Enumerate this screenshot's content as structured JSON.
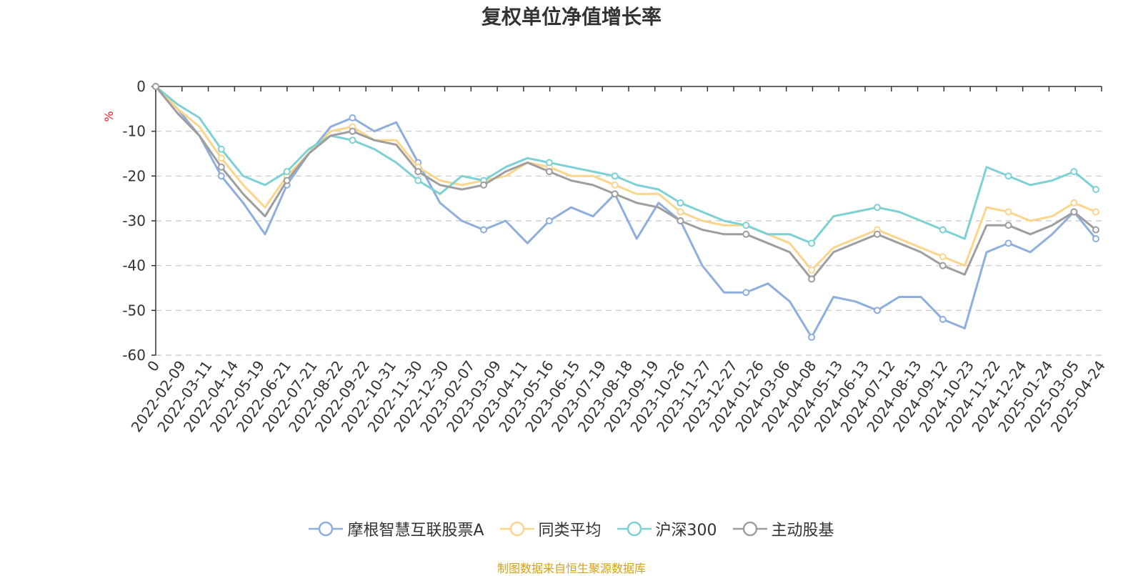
{
  "chart_data": {
    "type": "line",
    "title": "复权单位净值增长率",
    "ylabel": "%",
    "ylim": [
      -60,
      0
    ],
    "y_ticks": [
      "0",
      "-10",
      "-20",
      "-30",
      "-40",
      "-50",
      "-60"
    ],
    "x_tick_labels": [
      "0",
      "2022-02-09",
      "2022-03-11",
      "2022-04-14",
      "2022-05-19",
      "2022-06-21",
      "2022-07-21",
      "2022-08-22",
      "2022-09-22",
      "2022-10-31",
      "2022-11-30",
      "2022-12-30",
      "2023-02-07",
      "2023-03-09",
      "2023-04-11",
      "2023-05-16",
      "2023-06-15",
      "2023-07-19",
      "2023-08-18",
      "2023-09-19",
      "2023-10-26",
      "2023-11-27",
      "2023-12-27",
      "2024-01-26",
      "2024-03-06",
      "2024-04-08",
      "2024-05-13",
      "2024-06-13",
      "2024-07-12",
      "2024-08-13",
      "2024-09-12",
      "2024-10-23",
      "2024-11-22",
      "2024-12-24",
      "2025-01-24",
      "2025-03-05",
      "2025-04-24"
    ],
    "grid": true,
    "legend_position": "bottom",
    "series": [
      {
        "name": "摩根智慧互联股票A",
        "color": "#8eaedb",
        "values": [
          0,
          -5,
          -11,
          -20,
          -26,
          -33,
          -22,
          -15,
          -9,
          -7,
          -10,
          -8,
          -17,
          -26,
          -30,
          -32,
          -30,
          -35,
          -30,
          -27,
          -29,
          -24,
          -34,
          -26,
          -30,
          -40,
          -46,
          -46,
          -44,
          -48,
          -56,
          -47,
          -48,
          -50,
          -47,
          -47,
          -52,
          -54,
          -37,
          -35,
          -37,
          -33,
          -28,
          -34
        ]
      },
      {
        "name": "同类平均",
        "color": "#fbd58c",
        "values": [
          0,
          -5,
          -9,
          -16,
          -22,
          -27,
          -20,
          -15,
          -10,
          -9,
          -12,
          -12,
          -18,
          -21,
          -22,
          -21,
          -20,
          -17,
          -18,
          -20,
          -20,
          -22,
          -24,
          -24,
          -28,
          -30,
          -31,
          -31,
          -33,
          -35,
          -41,
          -36,
          -34,
          -32,
          -34,
          -36,
          -38,
          -40,
          -27,
          -28,
          -30,
          -29,
          -26,
          -28
        ]
      },
      {
        "name": "沪深300",
        "color": "#7dd1d4",
        "values": [
          0,
          -4,
          -7,
          -14,
          -20,
          -22,
          -19,
          -14,
          -11,
          -12,
          -14,
          -17,
          -21,
          -24,
          -20,
          -21,
          -18,
          -16,
          -17,
          -18,
          -19,
          -20,
          -22,
          -23,
          -26,
          -28,
          -30,
          -31,
          -33,
          -33,
          -35,
          -29,
          -28,
          -27,
          -28,
          -30,
          -32,
          -34,
          -18,
          -20,
          -22,
          -21,
          -19,
          -23
        ]
      },
      {
        "name": "主动股基",
        "color": "#9e9e9e",
        "values": [
          0,
          -6,
          -11,
          -18,
          -24,
          -29,
          -21,
          -15,
          -11,
          -10,
          -12,
          -13,
          -19,
          -22,
          -23,
          -22,
          -19,
          -17,
          -19,
          -21,
          -22,
          -24,
          -26,
          -27,
          -30,
          -32,
          -33,
          -33,
          -35,
          -37,
          -43,
          -37,
          -35,
          -33,
          -35,
          -37,
          -40,
          -42,
          -31,
          -31,
          -33,
          -31,
          -28,
          -32
        ]
      }
    ]
  },
  "source_note": "制图数据来自恒生聚源数据库"
}
